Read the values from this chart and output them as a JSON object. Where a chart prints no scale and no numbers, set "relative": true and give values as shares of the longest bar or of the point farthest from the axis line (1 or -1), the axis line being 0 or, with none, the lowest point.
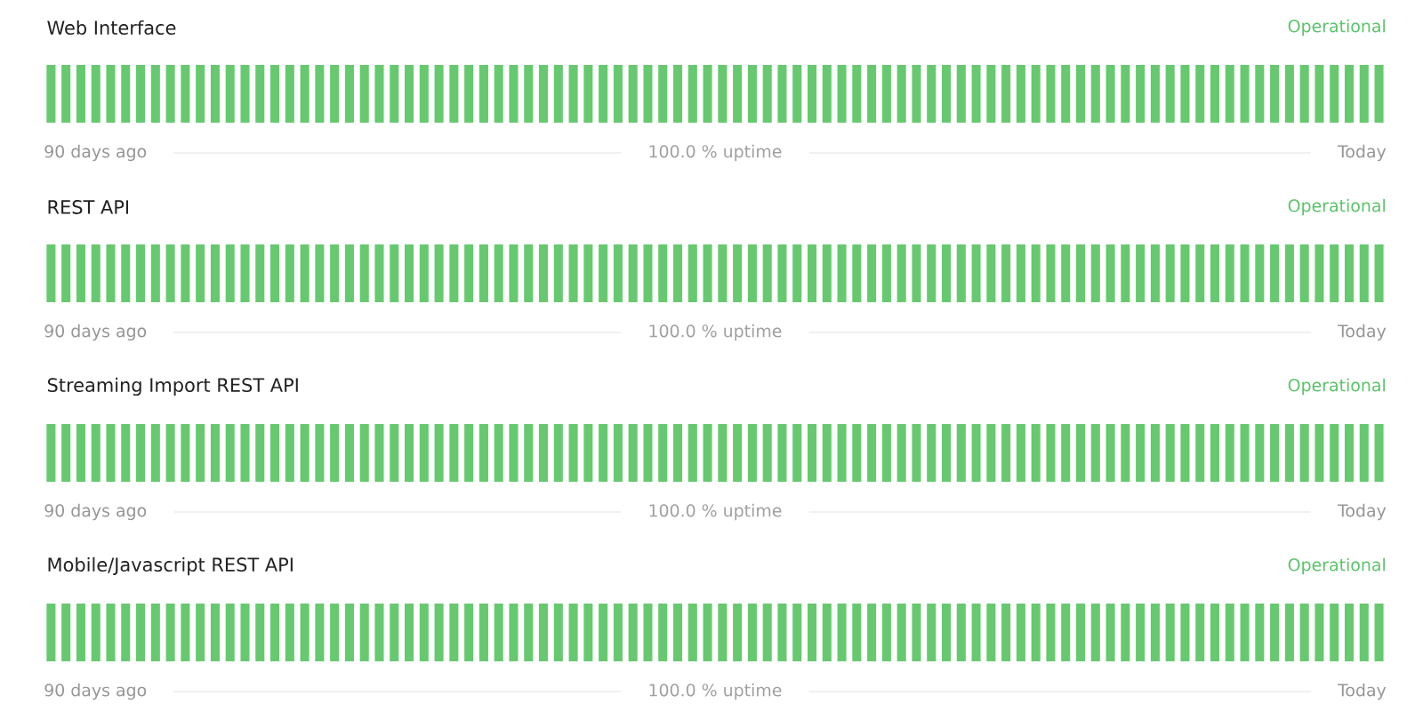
{
  "chart_data": [
    {
      "type": "bar",
      "title": "Web Interface",
      "relative": true,
      "color": "#67c96f",
      "annotations": [
        "Operational",
        "90 days ago",
        "100.0 % uptime",
        "Today"
      ],
      "categories": [
        null,
        null,
        null,
        null,
        null,
        null,
        null,
        null,
        null,
        null,
        null,
        null,
        null,
        null,
        null,
        null,
        null,
        null,
        null,
        null,
        null,
        null,
        null,
        null,
        null,
        null,
        null,
        null,
        null,
        null,
        null,
        null,
        null,
        null,
        null,
        null,
        null,
        null,
        null,
        null,
        null,
        null,
        null,
        null,
        null,
        null,
        null,
        null,
        null,
        null,
        null,
        null,
        null,
        null,
        null,
        null,
        null,
        null,
        null,
        null,
        null,
        null,
        null,
        null,
        null,
        null,
        null,
        null,
        null,
        null,
        null,
        null,
        null,
        null,
        null,
        null,
        null,
        null,
        null,
        null,
        null,
        null,
        null,
        null,
        null,
        null,
        null,
        null,
        null,
        null
      ],
      "values": [
        1,
        1,
        1,
        1,
        1,
        1,
        1,
        1,
        1,
        1,
        1,
        1,
        1,
        1,
        1,
        1,
        1,
        1,
        1,
        1,
        1,
        1,
        1,
        1,
        1,
        1,
        1,
        1,
        1,
        1,
        1,
        1,
        1,
        1,
        1,
        1,
        1,
        1,
        1,
        1,
        1,
        1,
        1,
        1,
        1,
        1,
        1,
        1,
        1,
        1,
        1,
        1,
        1,
        1,
        1,
        1,
        1,
        1,
        1,
        1,
        1,
        1,
        1,
        1,
        1,
        1,
        1,
        1,
        1,
        1,
        1,
        1,
        1,
        1,
        1,
        1,
        1,
        1,
        1,
        1,
        1,
        1,
        1,
        1,
        1,
        1,
        1,
        1,
        1,
        1
      ]
    },
    {
      "type": "bar",
      "title": "REST API",
      "relative": true,
      "color": "#67c96f",
      "annotations": [
        "Operational",
        "90 days ago",
        "100.0 % uptime",
        "Today"
      ],
      "categories": [
        null,
        null,
        null,
        null,
        null,
        null,
        null,
        null,
        null,
        null,
        null,
        null,
        null,
        null,
        null,
        null,
        null,
        null,
        null,
        null,
        null,
        null,
        null,
        null,
        null,
        null,
        null,
        null,
        null,
        null,
        null,
        null,
        null,
        null,
        null,
        null,
        null,
        null,
        null,
        null,
        null,
        null,
        null,
        null,
        null,
        null,
        null,
        null,
        null,
        null,
        null,
        null,
        null,
        null,
        null,
        null,
        null,
        null,
        null,
        null,
        null,
        null,
        null,
        null,
        null,
        null,
        null,
        null,
        null,
        null,
        null,
        null,
        null,
        null,
        null,
        null,
        null,
        null,
        null,
        null,
        null,
        null,
        null,
        null,
        null,
        null,
        null,
        null,
        null,
        null
      ],
      "values": [
        1,
        1,
        1,
        1,
        1,
        1,
        1,
        1,
        1,
        1,
        1,
        1,
        1,
        1,
        1,
        1,
        1,
        1,
        1,
        1,
        1,
        1,
        1,
        1,
        1,
        1,
        1,
        1,
        1,
        1,
        1,
        1,
        1,
        1,
        1,
        1,
        1,
        1,
        1,
        1,
        1,
        1,
        1,
        1,
        1,
        1,
        1,
        1,
        1,
        1,
        1,
        1,
        1,
        1,
        1,
        1,
        1,
        1,
        1,
        1,
        1,
        1,
        1,
        1,
        1,
        1,
        1,
        1,
        1,
        1,
        1,
        1,
        1,
        1,
        1,
        1,
        1,
        1,
        1,
        1,
        1,
        1,
        1,
        1,
        1,
        1,
        1,
        1,
        1,
        1
      ]
    },
    {
      "type": "bar",
      "title": "Streaming Import REST API",
      "relative": true,
      "color": "#67c96f",
      "annotations": [
        "Operational",
        "90 days ago",
        "100.0 % uptime",
        "Today"
      ],
      "categories": [
        null,
        null,
        null,
        null,
        null,
        null,
        null,
        null,
        null,
        null,
        null,
        null,
        null,
        null,
        null,
        null,
        null,
        null,
        null,
        null,
        null,
        null,
        null,
        null,
        null,
        null,
        null,
        null,
        null,
        null,
        null,
        null,
        null,
        null,
        null,
        null,
        null,
        null,
        null,
        null,
        null,
        null,
        null,
        null,
        null,
        null,
        null,
        null,
        null,
        null,
        null,
        null,
        null,
        null,
        null,
        null,
        null,
        null,
        null,
        null,
        null,
        null,
        null,
        null,
        null,
        null,
        null,
        null,
        null,
        null,
        null,
        null,
        null,
        null,
        null,
        null,
        null,
        null,
        null,
        null,
        null,
        null,
        null,
        null,
        null,
        null,
        null,
        null,
        null,
        null
      ],
      "values": [
        1,
        1,
        1,
        1,
        1,
        1,
        1,
        1,
        1,
        1,
        1,
        1,
        1,
        1,
        1,
        1,
        1,
        1,
        1,
        1,
        1,
        1,
        1,
        1,
        1,
        1,
        1,
        1,
        1,
        1,
        1,
        1,
        1,
        1,
        1,
        1,
        1,
        1,
        1,
        1,
        1,
        1,
        1,
        1,
        1,
        1,
        1,
        1,
        1,
        1,
        1,
        1,
        1,
        1,
        1,
        1,
        1,
        1,
        1,
        1,
        1,
        1,
        1,
        1,
        1,
        1,
        1,
        1,
        1,
        1,
        1,
        1,
        1,
        1,
        1,
        1,
        1,
        1,
        1,
        1,
        1,
        1,
        1,
        1,
        1,
        1,
        1,
        1,
        1,
        1
      ]
    },
    {
      "type": "bar",
      "title": "Mobile/Javascript REST API",
      "relative": true,
      "color": "#67c96f",
      "annotations": [
        "Operational",
        "90 days ago",
        "100.0 % uptime",
        "Today"
      ],
      "categories": [
        null,
        null,
        null,
        null,
        null,
        null,
        null,
        null,
        null,
        null,
        null,
        null,
        null,
        null,
        null,
        null,
        null,
        null,
        null,
        null,
        null,
        null,
        null,
        null,
        null,
        null,
        null,
        null,
        null,
        null,
        null,
        null,
        null,
        null,
        null,
        null,
        null,
        null,
        null,
        null,
        null,
        null,
        null,
        null,
        null,
        null,
        null,
        null,
        null,
        null,
        null,
        null,
        null,
        null,
        null,
        null,
        null,
        null,
        null,
        null,
        null,
        null,
        null,
        null,
        null,
        null,
        null,
        null,
        null,
        null,
        null,
        null,
        null,
        null,
        null,
        null,
        null,
        null,
        null,
        null,
        null,
        null,
        null,
        null,
        null,
        null,
        null,
        null,
        null,
        null
      ],
      "values": [
        1,
        1,
        1,
        1,
        1,
        1,
        1,
        1,
        1,
        1,
        1,
        1,
        1,
        1,
        1,
        1,
        1,
        1,
        1,
        1,
        1,
        1,
        1,
        1,
        1,
        1,
        1,
        1,
        1,
        1,
        1,
        1,
        1,
        1,
        1,
        1,
        1,
        1,
        1,
        1,
        1,
        1,
        1,
        1,
        1,
        1,
        1,
        1,
        1,
        1,
        1,
        1,
        1,
        1,
        1,
        1,
        1,
        1,
        1,
        1,
        1,
        1,
        1,
        1,
        1,
        1,
        1,
        1,
        1,
        1,
        1,
        1,
        1,
        1,
        1,
        1,
        1,
        1,
        1,
        1,
        1,
        1,
        1,
        1,
        1,
        1,
        1,
        1,
        1,
        1
      ]
    }
  ]
}
